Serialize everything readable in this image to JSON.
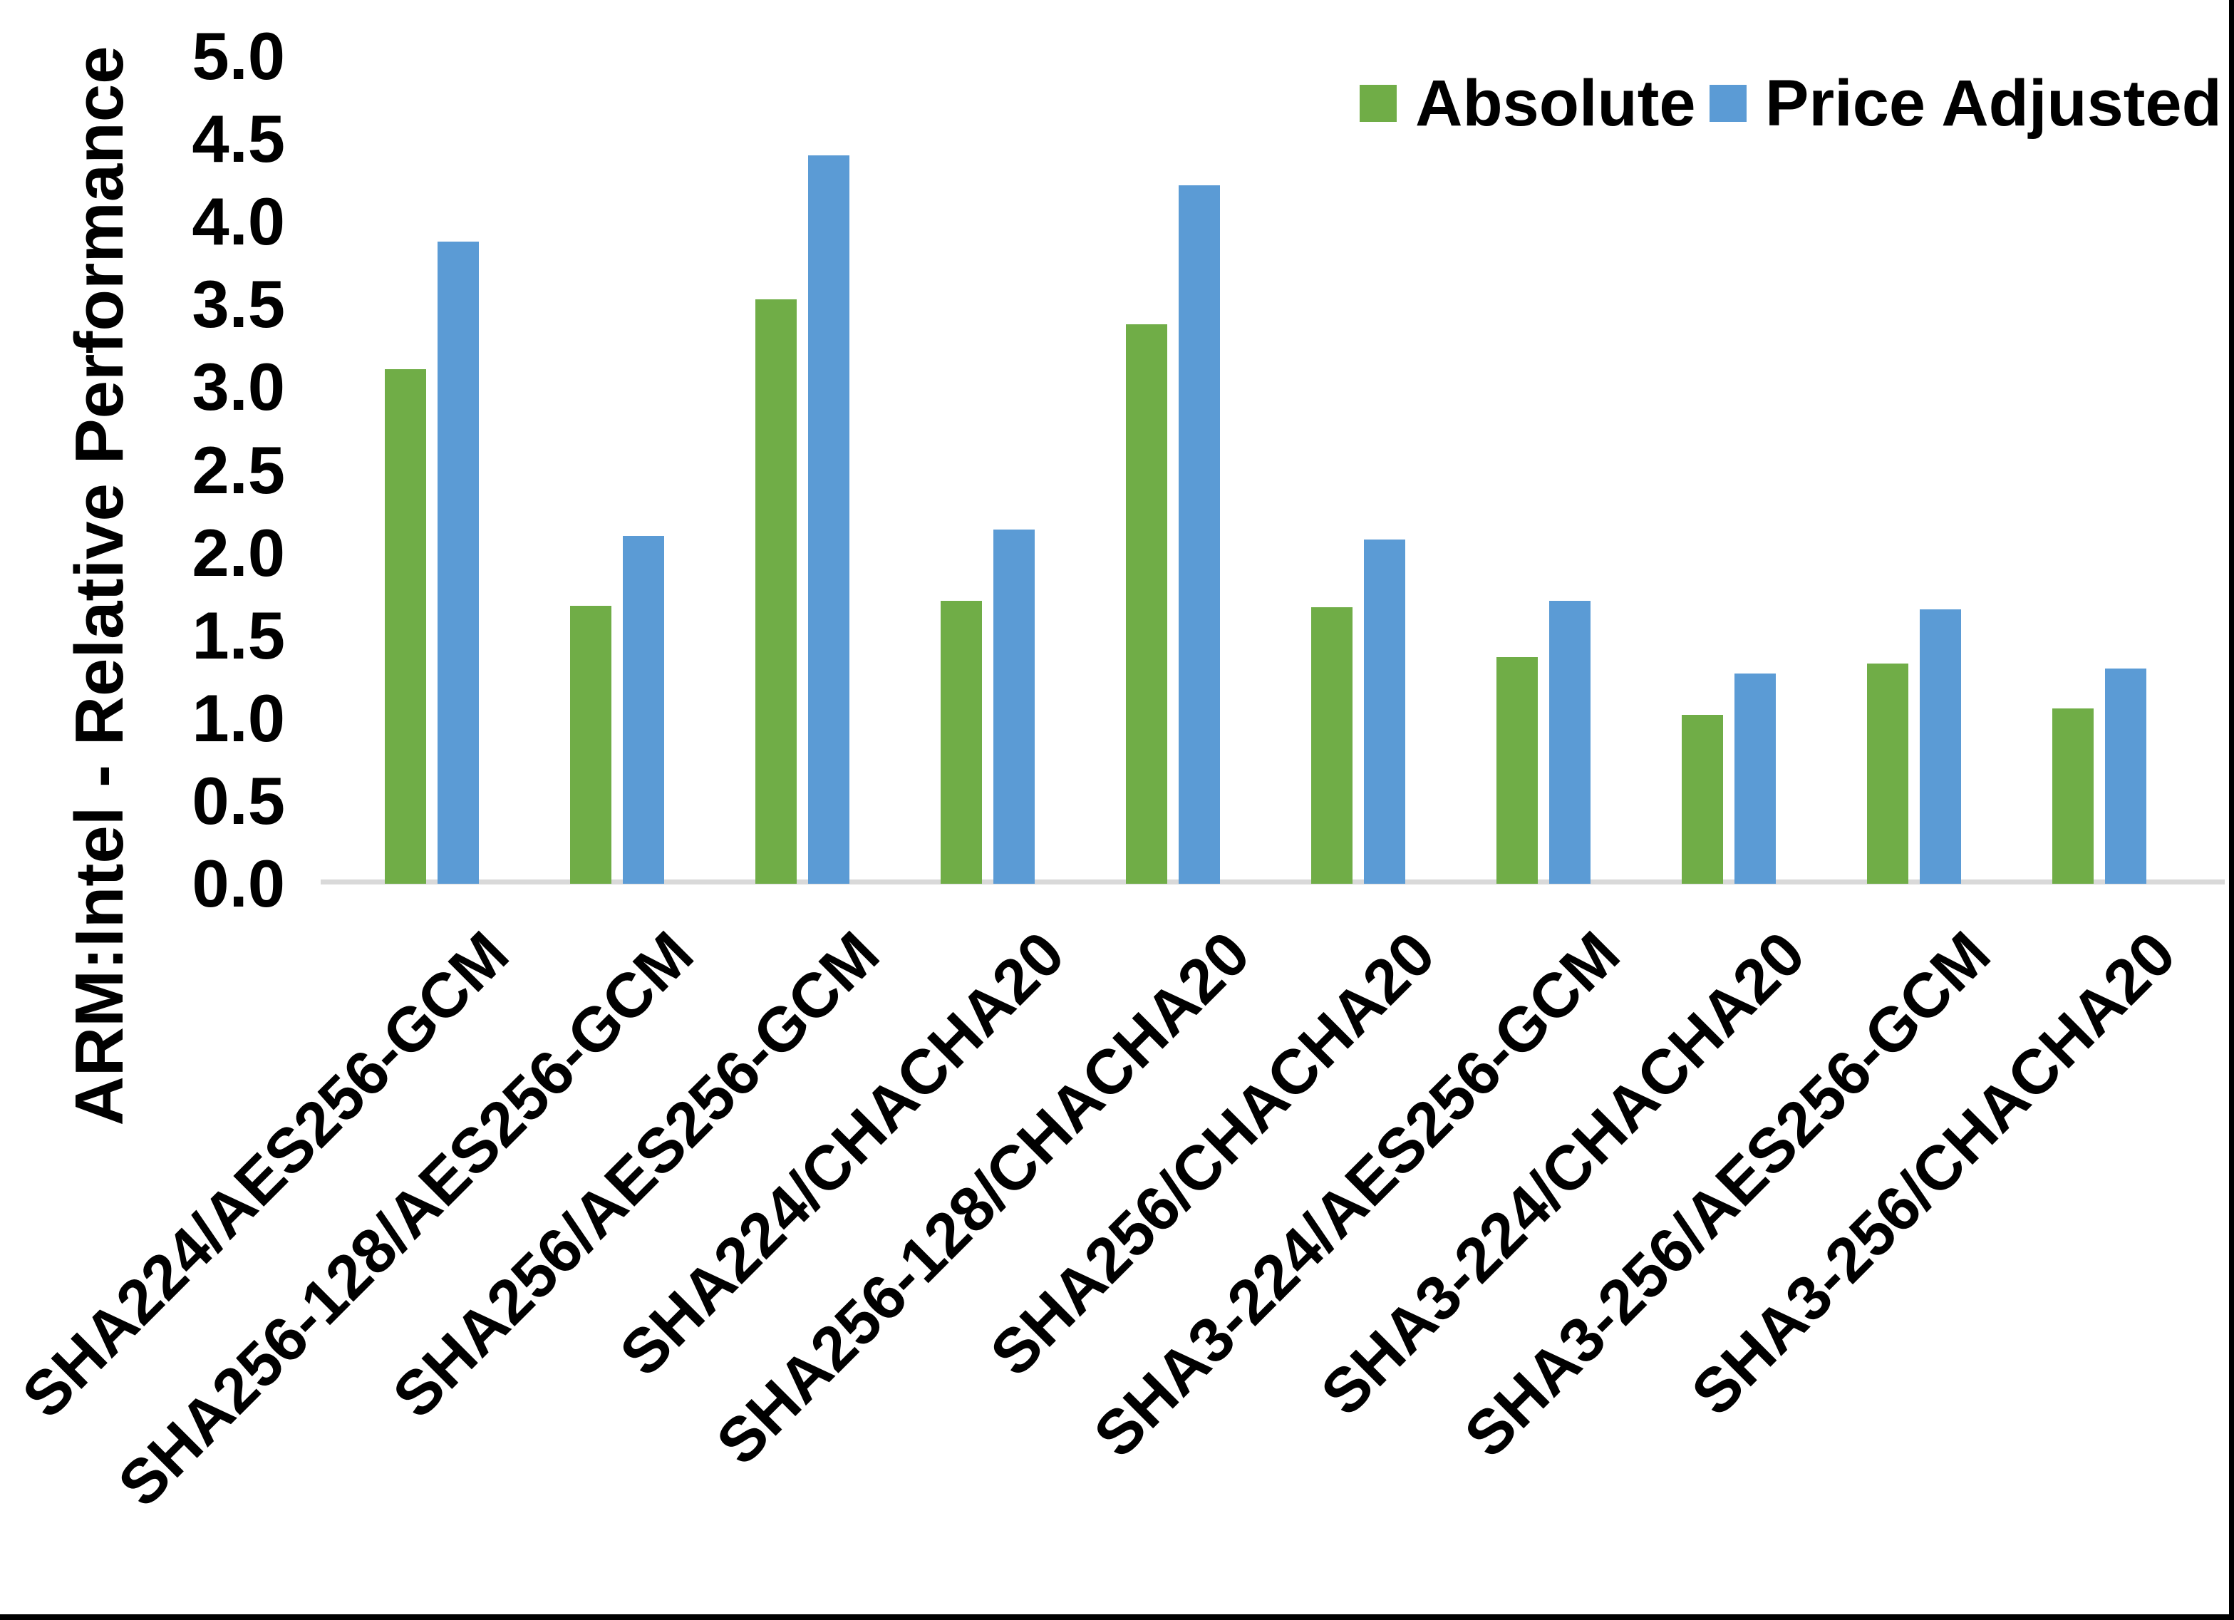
{
  "figure": {
    "background": "#ffffff",
    "frame_color": "#000000",
    "axis_line_color": "#d9d9d9"
  },
  "y_axis": {
    "title": "ARM:Intel - Relative Performance",
    "tick_labels": [
      "0.0",
      "0.5",
      "1.0",
      "1.5",
      "2.0",
      "2.5",
      "3.0",
      "3.5",
      "4.0",
      "4.5",
      "5.0"
    ]
  },
  "legend": {
    "items": [
      {
        "label": "Absolute",
        "color": "#70ad47"
      },
      {
        "label": "Price Adjusted",
        "color": "#5b9bd5"
      }
    ]
  },
  "chart_data": {
    "type": "bar",
    "title": "",
    "xlabel": "",
    "ylabel": "ARM:Intel - Relative Performance",
    "ylim": [
      0,
      5
    ],
    "ytick_step": 0.5,
    "grid": false,
    "legend_position": "top-right",
    "categories": [
      "SHA224/AES256-GCM",
      "SHA256-128/AES256-GCM",
      "SHA256/AES256-GCM",
      "SHA224/CHACHA20",
      "SHA256-128/CHACHA20",
      "SHA256/CHACHA20",
      "SHA3-224/AES256-GCM",
      "SHA3-224/CHACHA20",
      "SHA3-256/AES256-GCM",
      "SHA3-256/CHACHA20"
    ],
    "series": [
      {
        "name": "Absolute",
        "color": "#70ad47",
        "values": [
          3.11,
          1.68,
          3.53,
          1.71,
          3.38,
          1.67,
          1.37,
          1.02,
          1.33,
          1.06
        ]
      },
      {
        "name": "Price Adjusted",
        "color": "#5b9bd5",
        "values": [
          3.88,
          2.1,
          4.4,
          2.14,
          4.22,
          2.08,
          1.71,
          1.27,
          1.66,
          1.3
        ]
      }
    ]
  }
}
